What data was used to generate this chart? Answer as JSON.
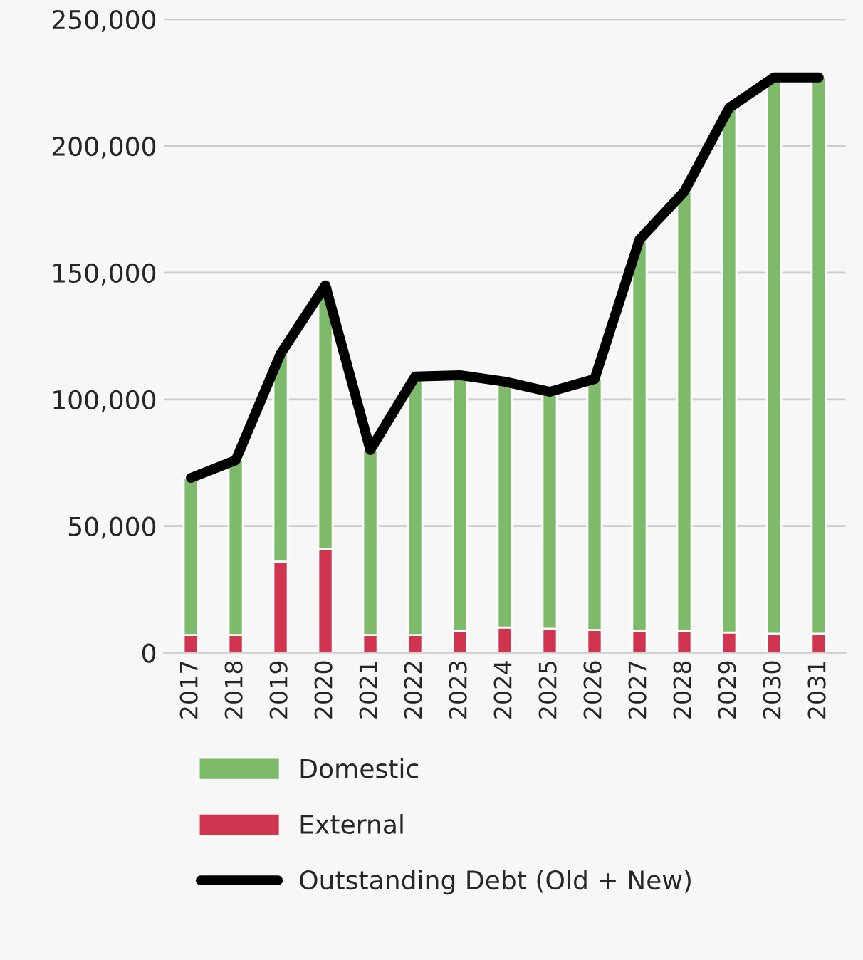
{
  "chart_data": {
    "type": "bar",
    "stacked": true,
    "categories": [
      "2017",
      "2018",
      "2019",
      "2020",
      "2021",
      "2022",
      "2023",
      "2024",
      "2025",
      "2026",
      "2027",
      "2028",
      "2029",
      "2030",
      "2031"
    ],
    "series": [
      {
        "name": "External",
        "color": "#d0344e",
        "values": [
          7000,
          7000,
          36000,
          41000,
          7000,
          7000,
          8500,
          10000,
          9500,
          9000,
          8500,
          8500,
          8000,
          7500,
          7500
        ]
      },
      {
        "name": "Domestic",
        "color": "#7dbb6a",
        "values": [
          62000,
          69000,
          82000,
          104000,
          73000,
          102000,
          101000,
          97000,
          93500,
          99000,
          154500,
          173500,
          207000,
          219500,
          219500
        ]
      },
      {
        "name": "Outstanding Debt (Old + New)",
        "type": "line",
        "color": "#000000",
        "values": [
          69000,
          76000,
          118000,
          145000,
          80000,
          109000,
          109500,
          107000,
          103000,
          108000,
          163000,
          182000,
          215000,
          227000,
          227000
        ]
      }
    ],
    "ylim": [
      0,
      250000
    ],
    "yticks": [
      {
        "value": 0,
        "label": "0"
      },
      {
        "value": 50000,
        "label": "50,000"
      },
      {
        "value": 100000,
        "label": "100,000"
      },
      {
        "value": 150000,
        "label": "150,000"
      },
      {
        "value": 200000,
        "label": "200,000"
      },
      {
        "value": 250000,
        "label": "250,000"
      }
    ],
    "grid": "y",
    "legend": "bottom"
  }
}
